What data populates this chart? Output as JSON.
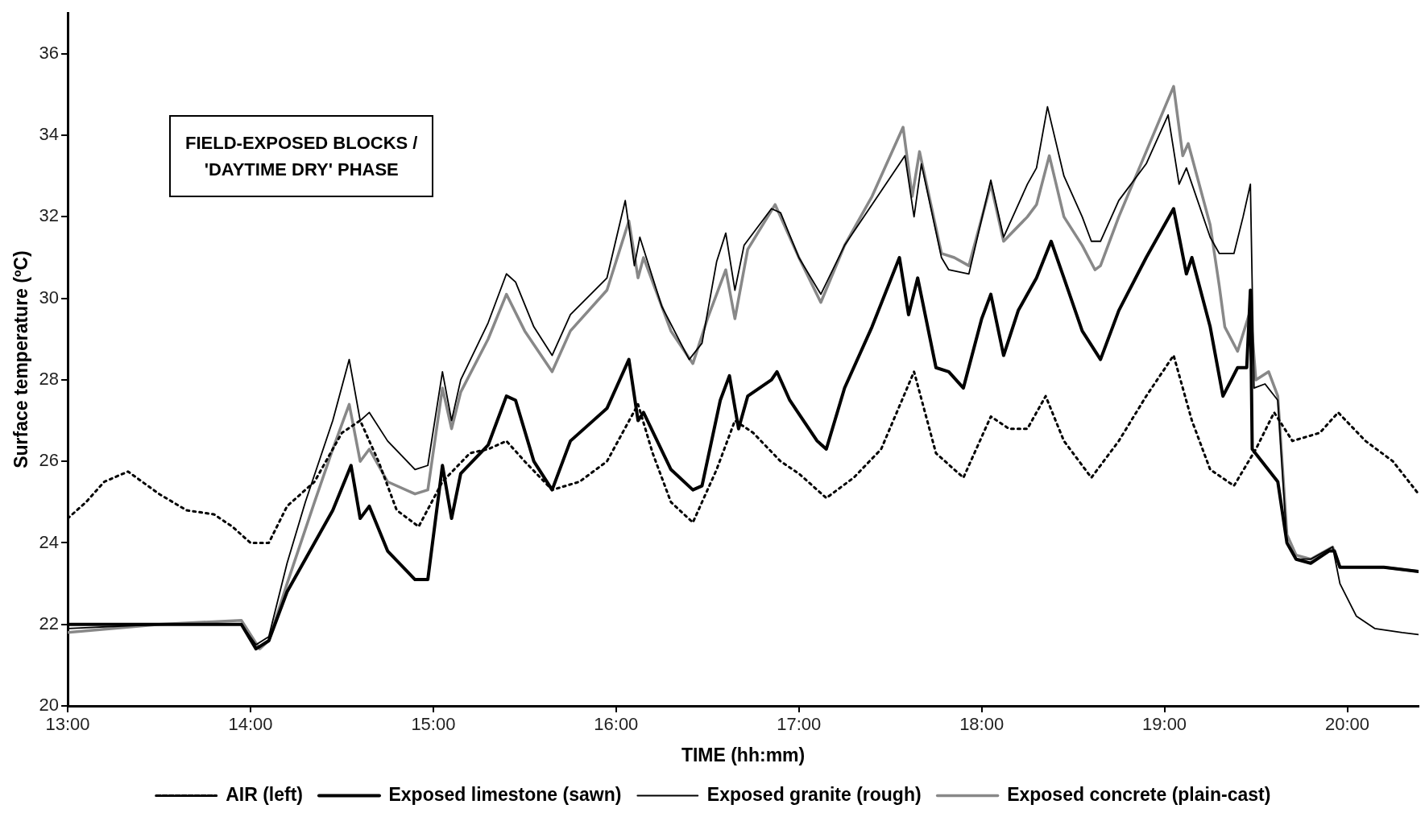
{
  "chart_data": {
    "type": "line",
    "xlabel": "TIME (hh:mm)",
    "ylabel": "Surface temperature (ºC)",
    "grid": false,
    "legend": "bottom",
    "marker": "none",
    "annotations": [
      "FIELD-EXPOSED BLOCKS /\n'DAYTIME DRY' PHASE"
    ],
    "xlim": [
      13,
      20.39
    ],
    "xticks": [
      {
        "value": 13,
        "label": "13:00"
      },
      {
        "value": 14,
        "label": "14:00"
      },
      {
        "value": 15,
        "label": "15:00"
      },
      {
        "value": 16,
        "label": "16:00"
      },
      {
        "value": 17,
        "label": "17:00"
      },
      {
        "value": 18,
        "label": "18:00"
      },
      {
        "value": 19,
        "label": "19:00"
      },
      {
        "value": 20,
        "label": "20:00"
      }
    ],
    "ylim": [
      20,
      37
    ],
    "yticks": [
      20,
      22,
      24,
      26,
      28,
      30,
      32,
      34,
      36
    ],
    "series": [
      {
        "name": "AIR (left)",
        "color": "#000000",
        "line_style": "dotted",
        "x": [
          13,
          13.1,
          13.2,
          13.33,
          13.5,
          13.65,
          13.8,
          13.9,
          14,
          14.1,
          14.2,
          14.35,
          14.5,
          14.6,
          14.7,
          14.8,
          14.92,
          15.05,
          15.2,
          15.3,
          15.4,
          15.5,
          15.65,
          15.8,
          15.95,
          16.12,
          16.2,
          16.3,
          16.42,
          16.55,
          16.65,
          16.75,
          16.9,
          17,
          17.15,
          17.3,
          17.45,
          17.63,
          17.75,
          17.9,
          18.05,
          18.15,
          18.25,
          18.35,
          18.45,
          18.6,
          18.75,
          18.9,
          19.05,
          19.15,
          19.25,
          19.38,
          19.5,
          19.6,
          19.7,
          19.85,
          19.95,
          20.1,
          20.25,
          20.39
        ],
        "values": [
          24.6,
          25,
          25.5,
          25.75,
          25.2,
          24.8,
          24.7,
          24.4,
          24,
          24,
          24.9,
          25.5,
          26.7,
          27,
          26,
          24.8,
          24.4,
          25.5,
          26.2,
          26.3,
          26.5,
          26,
          25.3,
          25.5,
          26,
          27.4,
          26.2,
          25,
          24.5,
          25.8,
          27,
          26.7,
          26,
          25.7,
          25.1,
          25.6,
          26.3,
          28.2,
          26.2,
          25.6,
          27.1,
          26.8,
          26.8,
          27.6,
          26.5,
          25.6,
          26.5,
          27.6,
          28.6,
          27,
          25.8,
          25.4,
          26.3,
          27.2,
          26.5,
          26.7,
          27.2,
          26.5,
          26,
          25.2
        ]
      },
      {
        "name": "Exposed limestone (sawn)",
        "color": "#000000",
        "line_style": "solid",
        "x": [
          13,
          13.5,
          13.95,
          14.03,
          14.1,
          14.2,
          14.35,
          14.45,
          14.55,
          14.6,
          14.65,
          14.75,
          14.9,
          14.97,
          15.05,
          15.1,
          15.15,
          15.3,
          15.4,
          15.45,
          15.55,
          15.65,
          15.75,
          15.95,
          16.07,
          16.12,
          16.15,
          16.3,
          16.42,
          16.47,
          16.57,
          16.62,
          16.67,
          16.72,
          16.85,
          16.88,
          16.95,
          17.1,
          17.15,
          17.25,
          17.4,
          17.55,
          17.6,
          17.65,
          17.75,
          17.82,
          17.9,
          18,
          18.05,
          18.12,
          18.2,
          18.3,
          18.38,
          18.45,
          18.55,
          18.65,
          18.75,
          18.9,
          19.05,
          19.12,
          19.15,
          19.25,
          19.32,
          19.4,
          19.45,
          19.47,
          19.48,
          19.55,
          19.62,
          19.67,
          19.72,
          19.8,
          19.9,
          19.93,
          19.96,
          20.2,
          20.39
        ],
        "values": [
          22,
          22,
          22,
          21.4,
          21.6,
          22.8,
          24,
          24.8,
          25.9,
          24.6,
          24.9,
          23.8,
          23.1,
          23.1,
          25.9,
          24.6,
          25.7,
          26.4,
          27.6,
          27.5,
          26,
          25.3,
          26.5,
          27.3,
          28.5,
          27,
          27.2,
          25.8,
          25.3,
          25.4,
          27.5,
          28.1,
          26.8,
          27.6,
          28,
          28.2,
          27.5,
          26.5,
          26.3,
          27.8,
          29.3,
          31,
          29.6,
          30.5,
          28.3,
          28.2,
          27.8,
          29.5,
          30.1,
          28.6,
          29.7,
          30.5,
          31.4,
          30.5,
          29.2,
          28.5,
          29.7,
          31,
          32.2,
          30.6,
          31,
          29.3,
          27.6,
          28.3,
          28.3,
          30.2,
          26.3,
          25.9,
          25.5,
          24,
          23.6,
          23.5,
          23.8,
          23.8,
          23.4,
          23.4,
          23.3
        ]
      },
      {
        "name": "Exposed granite (rough)",
        "color": "#000000",
        "line_style": "solid",
        "x": [
          13,
          13.5,
          13.95,
          14.03,
          14.1,
          14.2,
          14.3,
          14.45,
          14.54,
          14.6,
          14.65,
          14.75,
          14.9,
          14.97,
          15.05,
          15.1,
          15.15,
          15.3,
          15.4,
          15.45,
          15.55,
          15.65,
          15.75,
          15.95,
          16.05,
          16.1,
          16.13,
          16.25,
          16.4,
          16.47,
          16.55,
          16.6,
          16.65,
          16.7,
          16.85,
          16.9,
          17,
          17.12,
          17.25,
          17.4,
          17.58,
          17.63,
          17.67,
          17.78,
          17.82,
          17.93,
          18.05,
          18.12,
          18.25,
          18.3,
          18.36,
          18.45,
          18.55,
          18.6,
          18.65,
          18.75,
          18.9,
          19.02,
          19.08,
          19.12,
          19.25,
          19.3,
          19.38,
          19.43,
          19.47,
          19.49,
          19.55,
          19.62,
          19.67,
          19.72,
          19.8,
          19.92,
          19.96,
          20.05,
          20.15,
          20.3,
          20.39
        ],
        "values": [
          21.9,
          22,
          22,
          21.5,
          21.7,
          23.5,
          25,
          27,
          28.5,
          27,
          27.2,
          26.5,
          25.8,
          25.9,
          28.2,
          27,
          28,
          29.4,
          30.6,
          30.4,
          29.3,
          28.6,
          29.6,
          30.5,
          32.4,
          30.8,
          31.5,
          29.8,
          28.5,
          28.9,
          30.9,
          31.6,
          30.2,
          31.3,
          32.2,
          32.1,
          31,
          30.1,
          31.3,
          32.3,
          33.5,
          32,
          33.3,
          31,
          30.7,
          30.6,
          32.9,
          31.5,
          32.8,
          33.2,
          34.7,
          33,
          32,
          31.4,
          31.4,
          32.4,
          33.3,
          34.5,
          32.8,
          33.2,
          31.5,
          31.1,
          31.1,
          32,
          32.8,
          27.8,
          27.9,
          27.5,
          24,
          23.6,
          23.6,
          23.9,
          23,
          22.2,
          21.9,
          21.8,
          21.75
        ]
      },
      {
        "name": "Exposed concrete (plain-cast)",
        "color": "#888888",
        "line_style": "solid",
        "x": [
          13,
          13.5,
          13.95,
          14.05,
          14.1,
          14.2,
          14.35,
          14.45,
          14.54,
          14.6,
          14.65,
          14.75,
          14.9,
          14.97,
          15.05,
          15.1,
          15.15,
          15.3,
          15.4,
          15.5,
          15.65,
          15.75,
          15.95,
          16.07,
          16.12,
          16.15,
          16.3,
          16.42,
          16.5,
          16.6,
          16.65,
          16.72,
          16.87,
          17,
          17.12,
          17.25,
          17.4,
          17.57,
          17.62,
          17.66,
          17.78,
          17.85,
          17.93,
          18.05,
          18.12,
          18.25,
          18.3,
          18.37,
          18.45,
          18.55,
          18.62,
          18.65,
          18.75,
          18.9,
          19.05,
          19.1,
          19.13,
          19.25,
          19.3,
          19.33,
          19.4,
          19.47,
          19.5,
          19.57,
          19.62,
          19.67,
          19.72,
          19.8,
          19.92,
          19.96,
          20.2,
          20.39
        ],
        "values": [
          21.8,
          22,
          22.1,
          21.4,
          21.6,
          23,
          25,
          26.3,
          27.4,
          26,
          26.3,
          25.5,
          25.2,
          25.3,
          27.8,
          26.8,
          27.7,
          29,
          30.1,
          29.2,
          28.2,
          29.2,
          30.2,
          31.9,
          30.5,
          31,
          29.2,
          28.4,
          29.5,
          30.7,
          29.5,
          31.2,
          32.3,
          31,
          29.9,
          31.3,
          32.5,
          34.2,
          32.5,
          33.6,
          31.1,
          31,
          30.8,
          32.8,
          31.4,
          32,
          32.3,
          33.5,
          32,
          31.3,
          30.7,
          30.8,
          32,
          33.6,
          35.2,
          33.5,
          33.8,
          31.8,
          30.3,
          29.3,
          28.7,
          29.7,
          28,
          28.2,
          27.6,
          24.2,
          23.7,
          23.6,
          23.9,
          23.4,
          23.4,
          23.3
        ]
      }
    ]
  }
}
